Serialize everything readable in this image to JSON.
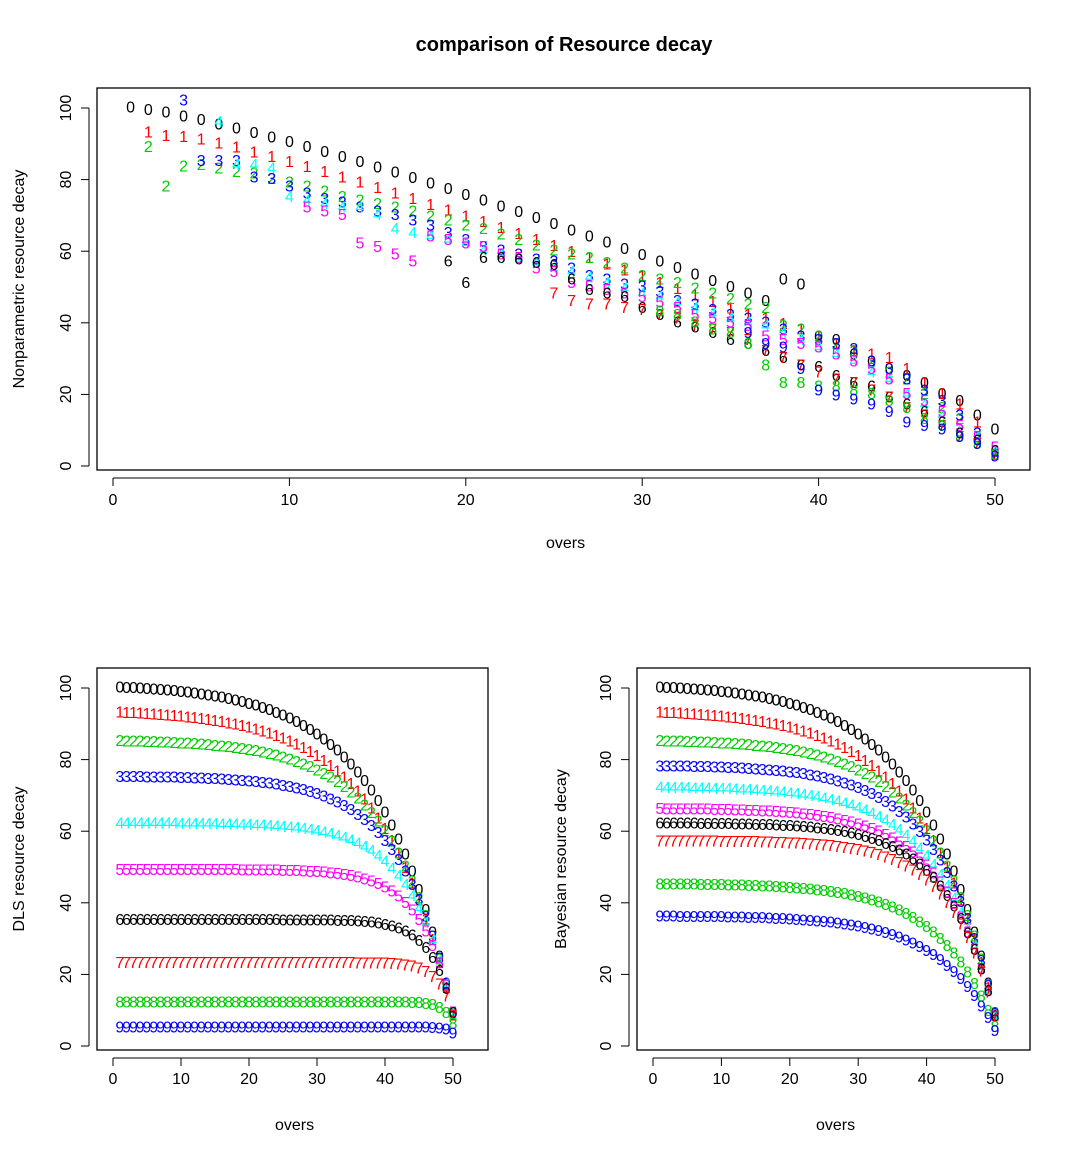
{
  "title": "comparison of Resource decay",
  "colors": [
    "#000000",
    "#ff0000",
    "#00cd00",
    "#0000ff",
    "#00ffff",
    "#ff00ff",
    "#000000",
    "#ff0000",
    "#00cd00",
    "#0000ff"
  ],
  "chart_data": [
    {
      "type": "scatter",
      "symbols": "wicket-digit",
      "xlabel": "overs",
      "ylabel": "Nonparametric resource decay",
      "xticks": [
        0,
        10,
        20,
        30,
        40,
        50
      ],
      "yticks": [
        0,
        20,
        40,
        60,
        80,
        100
      ],
      "xlim": [
        0,
        50
      ],
      "ylim": [
        0,
        100
      ],
      "series": [
        {
          "wickets": 0,
          "x": [
            1,
            2,
            3,
            4,
            5,
            6,
            7,
            8,
            9,
            10,
            11,
            12,
            13,
            14,
            15,
            16,
            17,
            18,
            19,
            20,
            21,
            22,
            23,
            24,
            25,
            26,
            27,
            28,
            29,
            30,
            31,
            32,
            33,
            34,
            35,
            36,
            37,
            38,
            39,
            40,
            41,
            42,
            43,
            44,
            45,
            46,
            47,
            48,
            49,
            50
          ],
          "y": [
            100,
            99.3,
            98.6,
            97.5,
            96.5,
            95.3,
            94.1,
            92.9,
            91.6,
            90.3,
            89,
            87.6,
            86.2,
            84.8,
            83.3,
            81.8,
            80.3,
            78.8,
            77.2,
            75.6,
            74,
            72.4,
            70.8,
            69.1,
            67.4,
            65.7,
            64,
            62.3,
            60.5,
            58.8,
            57,
            55.2,
            53.4,
            51.6,
            49.8,
            48,
            46,
            52,
            50.5,
            36,
            35,
            31,
            29,
            27,
            25,
            23,
            20,
            18,
            14,
            10
          ]
        },
        {
          "wickets": 1,
          "x": [
            2,
            3,
            4,
            5,
            6,
            7,
            8,
            9,
            10,
            11,
            12,
            13,
            14,
            15,
            16,
            17,
            18,
            19,
            20,
            21,
            22,
            23,
            24,
            25,
            26,
            27,
            28,
            29,
            30,
            31,
            32,
            33,
            34,
            35,
            36,
            37,
            38,
            39,
            40,
            41,
            42,
            43,
            44,
            45,
            46,
            47,
            48,
            49,
            50
          ],
          "y": [
            93,
            92,
            91.8,
            91,
            90,
            88.8,
            87.5,
            86.2,
            84.8,
            83.4,
            82,
            80.5,
            79,
            77.5,
            76,
            74.4,
            72.8,
            71.2,
            69.6,
            68,
            66.4,
            64.7,
            63,
            61.3,
            59.6,
            57.9,
            56.2,
            54.5,
            52.8,
            51,
            49.3,
            47.5,
            45.7,
            43.9,
            42,
            41,
            39.5,
            38,
            36,
            34,
            32,
            31,
            30,
            27,
            23,
            20,
            17,
            12,
            4
          ]
        },
        {
          "wickets": 2,
          "x": [
            2,
            3,
            4,
            5,
            6,
            7,
            8,
            9,
            10,
            11,
            12,
            13,
            14,
            15,
            16,
            17,
            18,
            19,
            20,
            21,
            22,
            23,
            24,
            25,
            26,
            27,
            28,
            29,
            30,
            31,
            32,
            33,
            34,
            35,
            36,
            37,
            38,
            39,
            40,
            41,
            42,
            43,
            44,
            45,
            46,
            47,
            48,
            49,
            50
          ],
          "y": [
            89,
            78,
            83.5,
            84,
            83,
            82,
            81.5,
            80,
            79,
            78,
            76.5,
            75,
            74,
            73,
            72,
            71,
            69.5,
            68.5,
            67,
            66,
            64.5,
            63,
            61.5,
            60,
            59,
            58,
            56.5,
            55,
            53,
            52,
            51,
            49.5,
            48,
            46.5,
            45,
            44,
            39,
            38,
            36,
            34,
            32,
            29,
            26,
            24,
            20,
            16,
            13,
            8,
            3
          ]
        },
        {
          "wickets": 3,
          "x": [
            4,
            5,
            6,
            7,
            8,
            9,
            10,
            11,
            12,
            13,
            14,
            15,
            16,
            17,
            18,
            19,
            20,
            21,
            22,
            23,
            24,
            25,
            26,
            27,
            28,
            29,
            30,
            31,
            32,
            33,
            34,
            35,
            36,
            37,
            38,
            39,
            40,
            41,
            42,
            43,
            44,
            45,
            46,
            47,
            48,
            49,
            50
          ],
          "y": [
            102,
            85,
            85,
            85,
            80.5,
            80,
            78,
            76,
            74.5,
            73.5,
            72,
            71,
            70,
            68.5,
            67,
            65,
            63,
            61,
            60,
            59,
            57.5,
            57,
            55,
            53,
            52,
            50.5,
            50,
            48.5,
            46,
            45,
            43.5,
            42,
            41,
            40,
            38,
            36,
            35,
            34,
            32.5,
            29,
            27,
            24,
            21,
            18,
            14,
            9,
            3
          ]
        },
        {
          "wickets": 4,
          "x": [
            6,
            7,
            8,
            9,
            10,
            11,
            12,
            13,
            14,
            15,
            16,
            17,
            18,
            19,
            20,
            21,
            22,
            23,
            24,
            25,
            26,
            27,
            28,
            29,
            30,
            31,
            32,
            33,
            34,
            35,
            36,
            37,
            38,
            39,
            40,
            41,
            42,
            43,
            44,
            45,
            46,
            47,
            48,
            49,
            50
          ],
          "y": [
            96,
            84,
            84,
            83,
            75,
            74,
            73,
            72,
            72,
            70,
            66,
            65,
            64,
            63,
            62,
            60,
            59,
            58,
            56.5,
            55,
            54,
            52.5,
            51,
            49.5,
            48,
            47,
            45.5,
            44,
            42.5,
            41,
            40,
            39,
            37,
            35,
            33,
            31,
            29,
            26,
            24,
            20,
            17,
            14,
            10,
            8,
            4
          ]
        },
        {
          "wickets": 5,
          "x": [
            11,
            12,
            13,
            14,
            15,
            16,
            17,
            18,
            19,
            20,
            21,
            22,
            23,
            24,
            25,
            26,
            27,
            28,
            29,
            30,
            31,
            32,
            33,
            34,
            35,
            36,
            37,
            38,
            39,
            40,
            41,
            42,
            43,
            44,
            45,
            46,
            47,
            48,
            49,
            50
          ],
          "y": [
            72,
            71,
            70,
            62,
            61,
            59,
            57,
            64,
            63,
            62,
            61,
            59,
            58,
            55,
            54,
            51,
            50,
            49,
            48,
            47,
            45.5,
            44,
            42,
            41,
            40,
            39,
            36,
            35,
            34,
            33,
            31,
            29,
            27,
            24,
            20,
            18,
            15,
            11,
            8,
            5
          ]
        },
        {
          "wickets": 6,
          "x": [
            19,
            20,
            21,
            22,
            23,
            24,
            25,
            26,
            27,
            28,
            29,
            30,
            31,
            32,
            33,
            34,
            35,
            36,
            37,
            38,
            39,
            40,
            41,
            42,
            43,
            44,
            45,
            46,
            47,
            48,
            49,
            50
          ],
          "y": [
            57,
            51,
            58,
            58,
            57.5,
            56.5,
            56,
            52,
            49,
            48,
            47,
            44,
            42,
            40,
            38.5,
            37,
            35,
            34,
            32,
            30,
            28,
            27.5,
            25,
            23,
            22,
            19,
            17,
            15,
            12,
            9,
            7,
            4
          ]
        },
        {
          "wickets": 7,
          "x": [
            25,
            26,
            27,
            28,
            29,
            30,
            31,
            32,
            33,
            34,
            35,
            36,
            37,
            38,
            39,
            40,
            41,
            42,
            43,
            44,
            45,
            46,
            47,
            48,
            49,
            50
          ],
          "y": [
            48,
            46,
            45,
            45,
            44,
            43.5,
            42,
            41,
            39,
            38,
            37,
            35,
            32,
            30,
            28,
            26,
            24,
            23,
            21,
            19,
            16,
            14,
            11,
            8,
            6,
            3
          ]
        },
        {
          "wickets": 8,
          "x": [
            31,
            32,
            33,
            34,
            35,
            36,
            37,
            38,
            39,
            40,
            41,
            42,
            43,
            44,
            45,
            46,
            47,
            48,
            49,
            50
          ],
          "y": [
            43,
            42,
            40,
            38,
            37,
            34,
            28,
            23,
            23,
            22,
            22,
            21,
            20,
            18,
            16,
            13,
            11,
            8,
            6,
            3
          ]
        },
        {
          "wickets": 9,
          "x": [
            36,
            37,
            38,
            39,
            40,
            41,
            42,
            43,
            44,
            45,
            46,
            47,
            48,
            49,
            50
          ],
          "y": [
            37,
            34,
            33,
            27,
            21,
            19.5,
            18.5,
            17,
            15,
            12,
            11,
            10,
            8,
            6,
            2.5
          ]
        }
      ]
    },
    {
      "type": "scatter",
      "symbols": "wicket-digit",
      "xlabel": "overs",
      "ylabel": "DLS resource decay",
      "xticks": [
        0,
        10,
        20,
        30,
        40,
        50
      ],
      "yticks": [
        0,
        20,
        40,
        60,
        80,
        100
      ],
      "xlim": [
        0,
        50
      ],
      "ylim": [
        0,
        100
      ],
      "model": "exponential-decay",
      "z": [
        100,
        93,
        85,
        75,
        62,
        49,
        35,
        23,
        12,
        5
      ],
      "b": [
        0.094,
        0.094,
        0.11,
        0.13,
        0.16,
        0.21,
        0.3,
        0.45,
        0.7,
        1.1
      ],
      "x_range": [
        1,
        50
      ]
    },
    {
      "type": "scatter",
      "symbols": "wicket-digit",
      "xlabel": "overs",
      "ylabel": "Bayesian resource decay",
      "xticks": [
        0,
        10,
        20,
        30,
        40,
        50
      ],
      "yticks": [
        0,
        20,
        40,
        60,
        80,
        100
      ],
      "xlim": [
        0,
        50
      ],
      "ylim": [
        0,
        100
      ],
      "model": "exponential-decay",
      "z": [
        100,
        93,
        85,
        78,
        72,
        66,
        62,
        57,
        45,
        36
      ],
      "b": [
        0.094,
        0.094,
        0.11,
        0.12,
        0.12,
        0.13,
        0.14,
        0.15,
        0.12,
        0.12
      ],
      "x_range": [
        1,
        50
      ]
    }
  ]
}
